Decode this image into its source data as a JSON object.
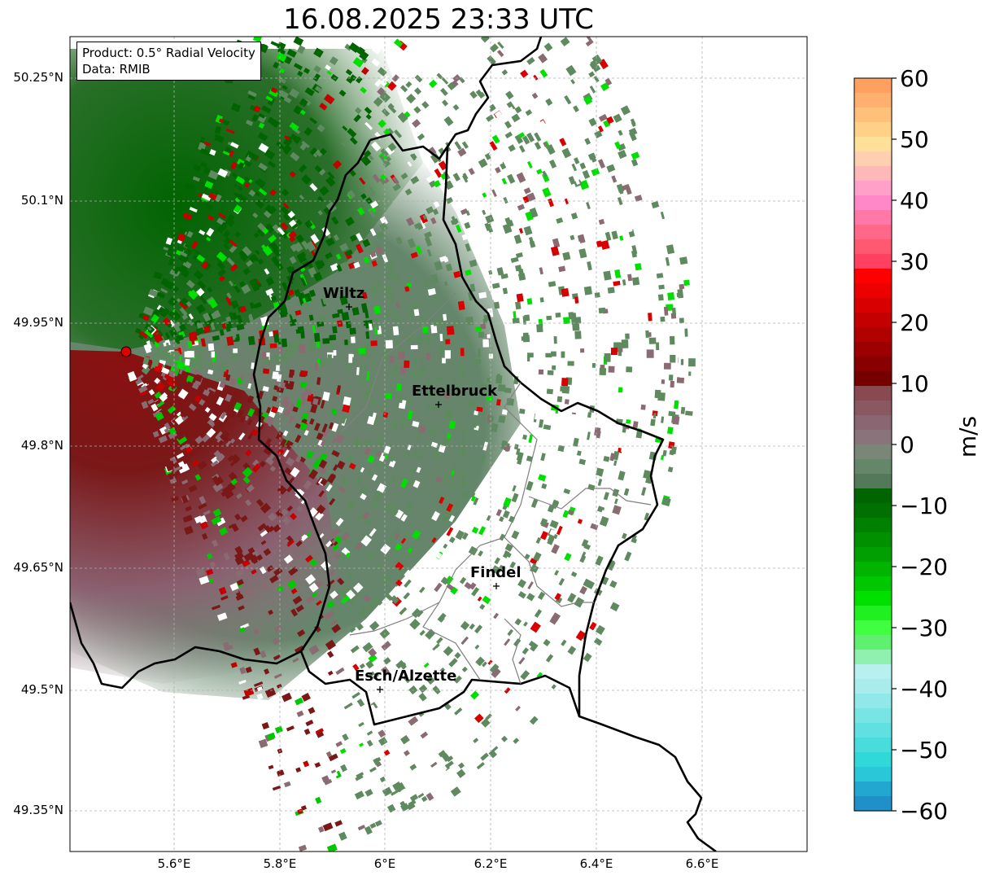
{
  "title": "16.08.2025 23:33 UTC",
  "info": {
    "product": "Product: 0.5° Radial Velocity",
    "source": "Data: RMIB"
  },
  "lat_labels": [
    "50.25°N",
    "50.1°N",
    "49.95°N",
    "49.8°N",
    "49.65°N",
    "49.5°N",
    "49.35°N"
  ],
  "lon_labels": [
    "5.6°E",
    "5.8°E",
    "6°E",
    "6.2°E",
    "6.4°E",
    "6.6°E"
  ],
  "cities": [
    "Wiltz",
    "Ettelbruck",
    "Findel",
    "Esch/Alzette"
  ],
  "colorbar": {
    "unit": "m/s",
    "ticks": [
      "60",
      "50",
      "40",
      "30",
      "20",
      "10",
      "0",
      "−10",
      "−20",
      "−30",
      "−40",
      "−50",
      "−60"
    ]
  },
  "colors": {
    "positive_dark": "#8b0000",
    "positive_red": "#e00000",
    "near_zero_pos": "#8a6b72",
    "near_zero_neg": "#5f8a5f",
    "negative_green": "#006400",
    "negative_bright": "#00e000",
    "cyan": "#30d8d8",
    "orange": "#ffa060",
    "border": "#000000"
  }
}
